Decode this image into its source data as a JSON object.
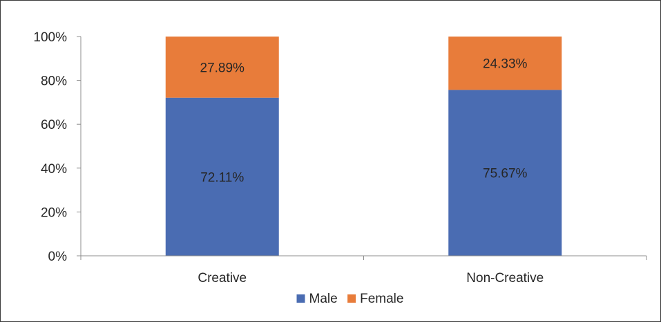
{
  "chart_data": {
    "type": "bar",
    "stacked": true,
    "percent_stacked": true,
    "categories": [
      "Creative",
      "Non-Creative"
    ],
    "series": [
      {
        "name": "Male",
        "values": [
          72.11,
          75.67
        ],
        "labels": [
          "72.11%",
          "75.67%"
        ],
        "color": "#4a6cb2"
      },
      {
        "name": "Female",
        "values": [
          27.89,
          24.33
        ],
        "labels": [
          "27.89%",
          "24.33%"
        ],
        "color": "#e87c3a"
      }
    ],
    "ylim": [
      0,
      100
    ],
    "yticks": [
      0,
      20,
      40,
      60,
      80,
      100
    ],
    "ytick_labels": [
      "0%",
      "20%",
      "40%",
      "60%",
      "80%",
      "100%"
    ],
    "grid": false,
    "legend": "bottom-center",
    "title": "",
    "xlabel": "",
    "ylabel": ""
  },
  "colors": {
    "axis": "#8c8c8c",
    "text": "#262626",
    "frame": "#3a3a3a"
  }
}
